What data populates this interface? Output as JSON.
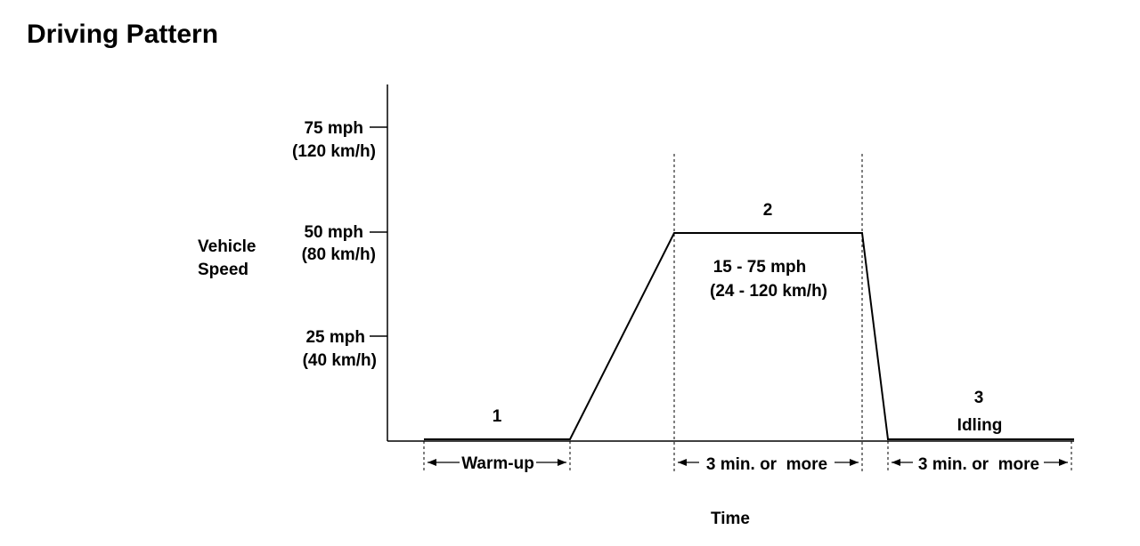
{
  "title": "Driving Pattern",
  "y_axis": {
    "label_line1": "Vehicle",
    "label_line2": "Speed",
    "ticks": [
      {
        "mph": "75 mph",
        "kmh": "(120 km/h)"
      },
      {
        "mph": "50 mph",
        "kmh": "(80 km/h)"
      },
      {
        "mph": "25 mph",
        "kmh": "(40 km/h)"
      }
    ]
  },
  "x_axis": {
    "label": "Time"
  },
  "phases": {
    "p1": {
      "number": "1",
      "duration": "Warm-up"
    },
    "p2": {
      "number": "2",
      "speed_line1": "15 - 75 mph",
      "speed_line2": "(24 - 120 km/h)",
      "duration": "3 min. or  more"
    },
    "p3": {
      "number": "3",
      "name": "Idling",
      "duration": "3 min. or  more"
    }
  }
}
